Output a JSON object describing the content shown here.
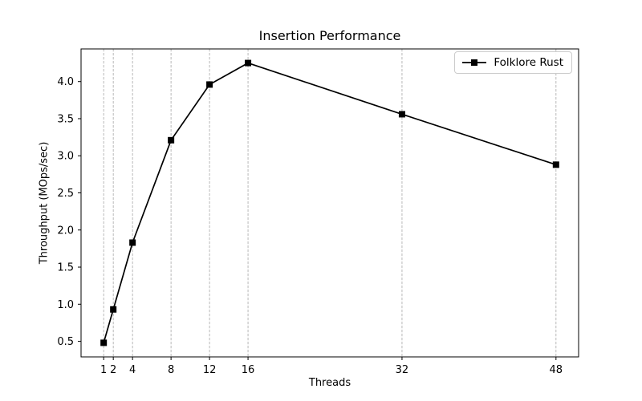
{
  "chart_data": {
    "type": "line",
    "title": "Insertion Performance",
    "xlabel": "Threads",
    "ylabel": "Throughput (MOps/sec)",
    "x": [
      1,
      2,
      4,
      8,
      12,
      16,
      32,
      48
    ],
    "series": [
      {
        "name": "Folklore Rust",
        "values": [
          0.48,
          0.93,
          1.83,
          3.21,
          3.96,
          4.25,
          3.56,
          2.88
        ],
        "color": "#000000",
        "marker": "square"
      }
    ],
    "x_ticks": [
      1,
      2,
      4,
      8,
      12,
      16,
      32,
      48
    ],
    "y_ticks": [
      0.5,
      1.0,
      1.5,
      2.0,
      2.5,
      3.0,
      3.5,
      4.0
    ],
    "xlim": [
      -1.35,
      50.35
    ],
    "ylim": [
      0.29,
      4.44
    ],
    "grid": "vertical-dashed",
    "grid_color": "#b0b0b0",
    "spine_color": "#000000",
    "legend_position": "upper-right",
    "background_color": "#ffffff"
  }
}
